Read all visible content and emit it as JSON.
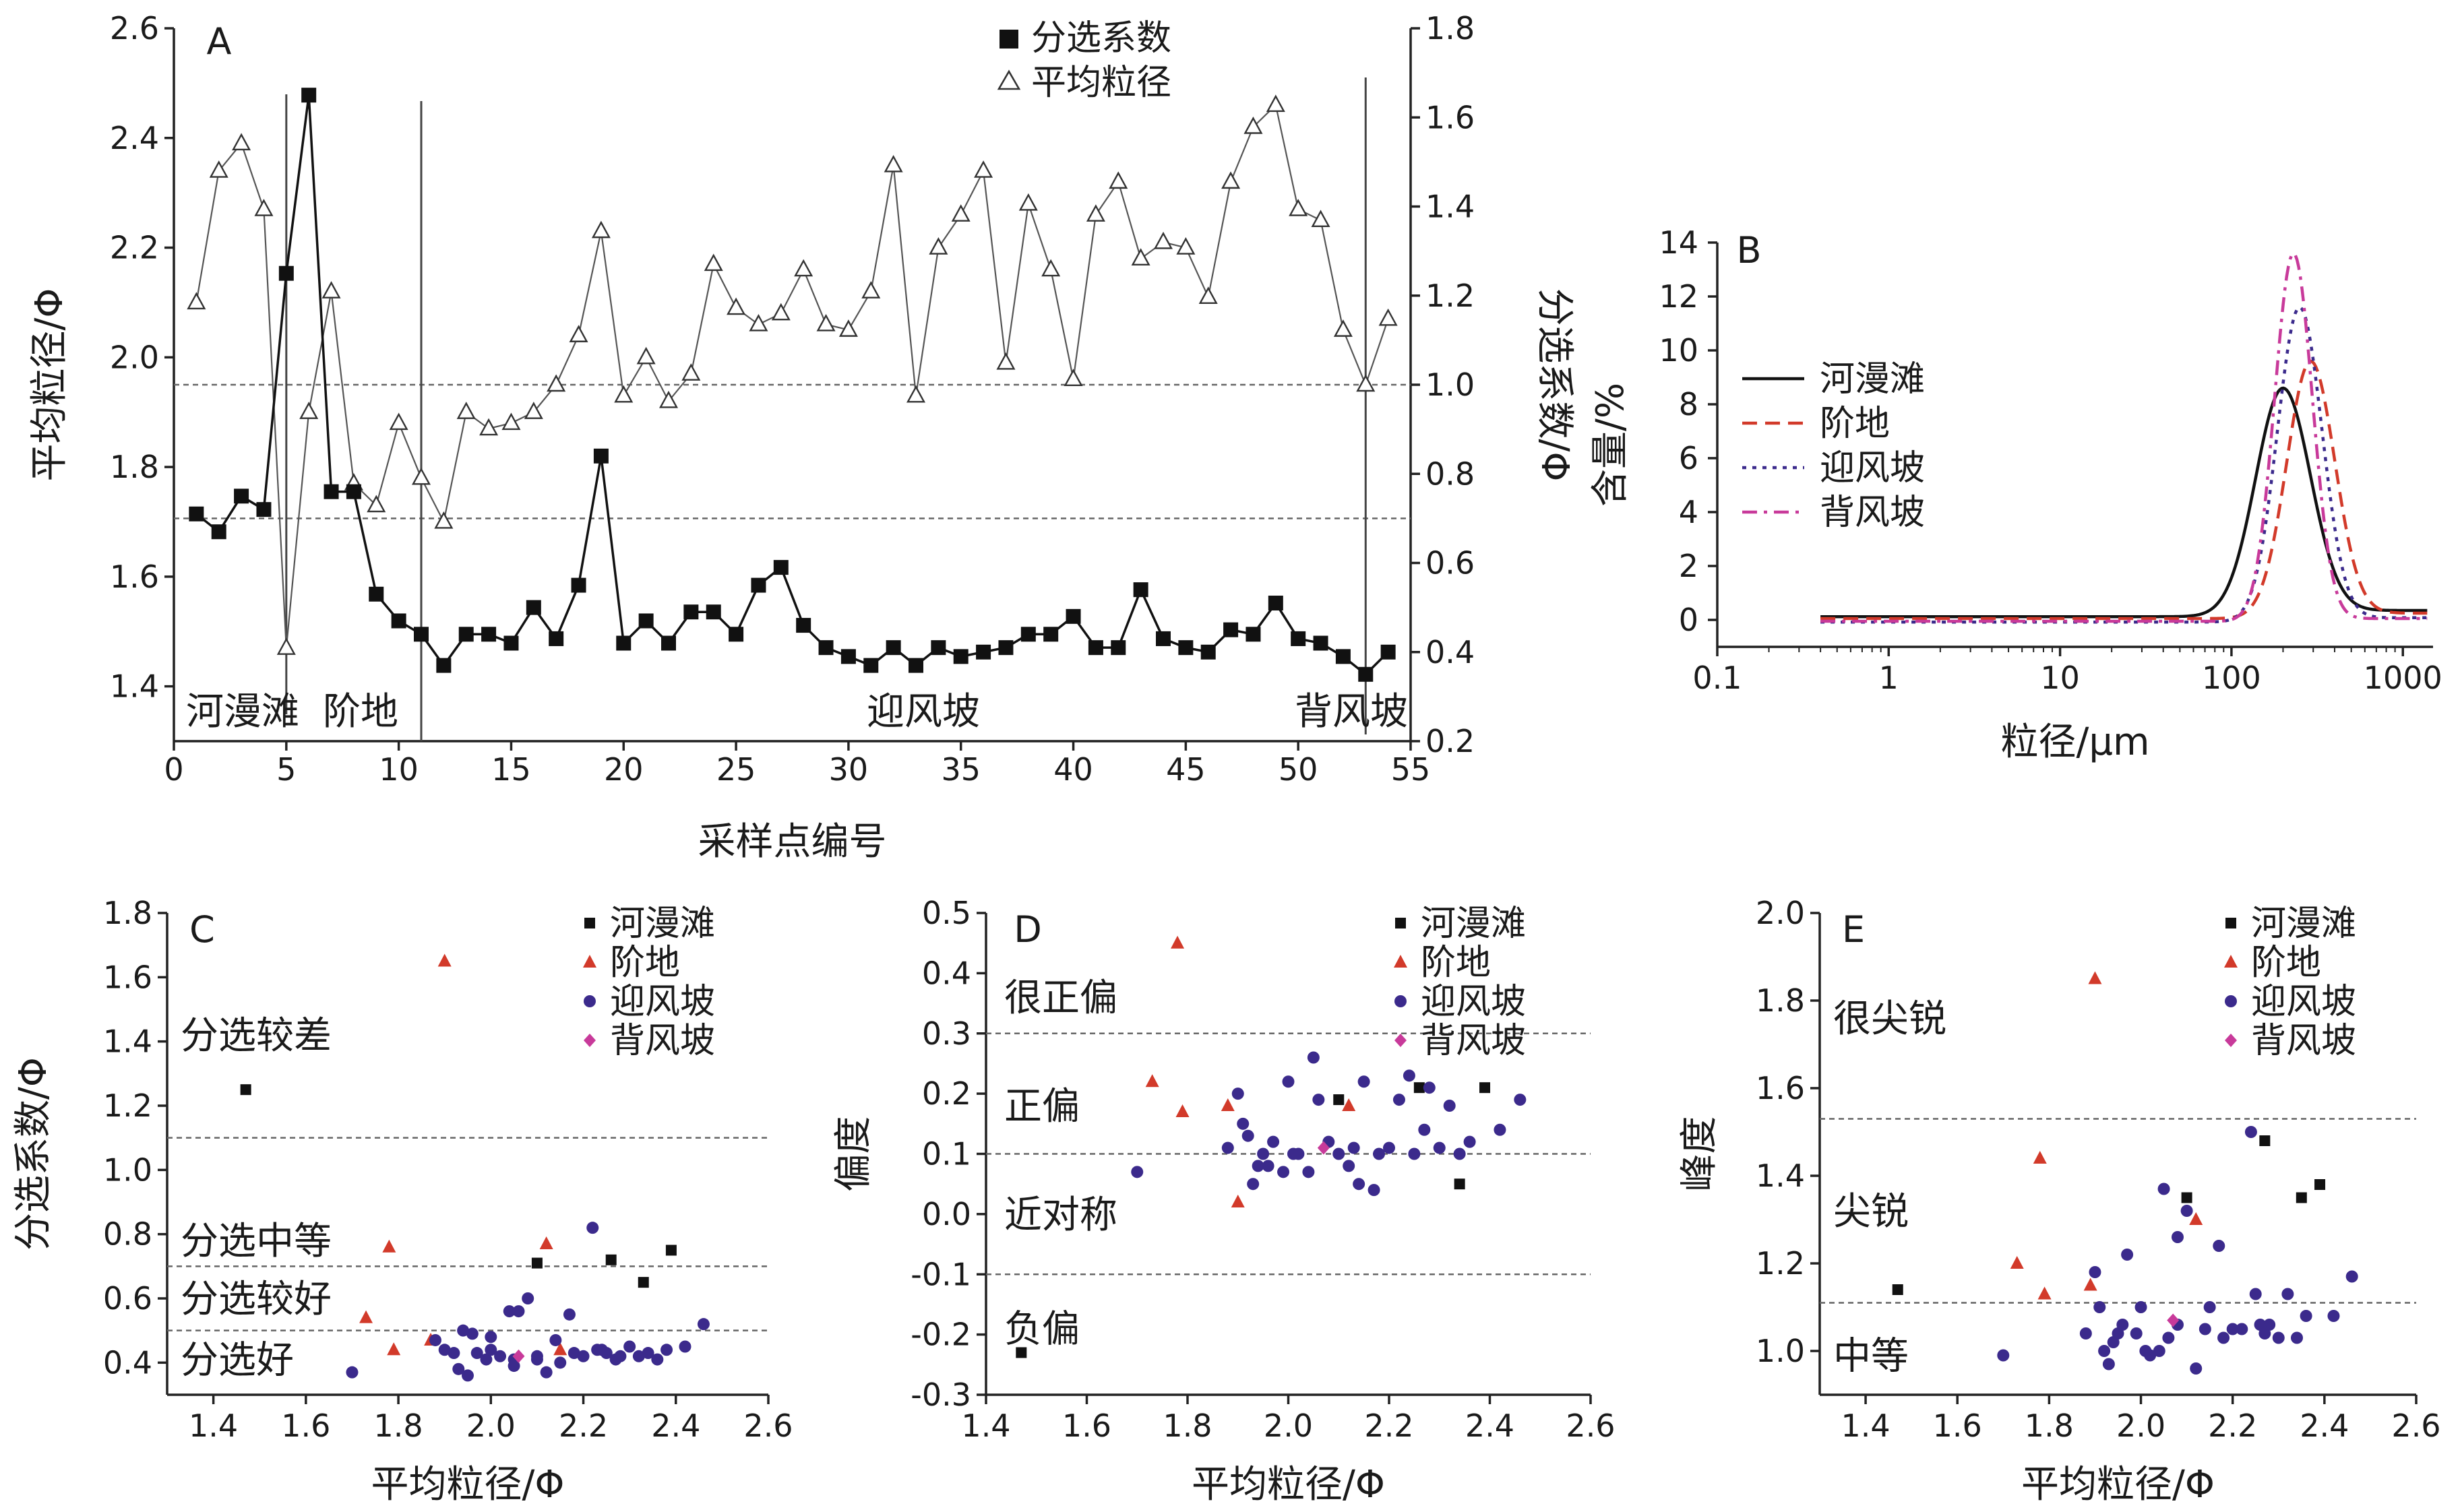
{
  "colors": {
    "hemantan": "#111111",
    "jiedi": "#d23a2a",
    "yingfengpo": "#3b2a8c",
    "beifengpo": "#c83a9a"
  },
  "chart_data": [
    {
      "panel": "A",
      "type": "line",
      "xlabel": "采样点编号",
      "ylabel_left": "平均粒径/Φ",
      "ylabel_right": "分选系数/Φ",
      "xlim": [
        0,
        55
      ],
      "xticks": [
        0,
        5,
        10,
        15,
        20,
        25,
        30,
        35,
        40,
        45,
        50,
        55
      ],
      "ylim_left": [
        1.3,
        2.6
      ],
      "yticks_left": [
        1.4,
        1.6,
        1.8,
        2.0,
        2.2,
        2.4,
        2.6
      ],
      "ylim_right": [
        0.2,
        1.8
      ],
      "yticks_right": [
        0.2,
        0.4,
        0.6,
        0.8,
        1.0,
        1.2,
        1.4,
        1.6,
        1.8
      ],
      "legend": [
        "分选系数",
        "平均粒径"
      ],
      "region_labels": [
        "河漫滩",
        "阶地",
        "迎风坡",
        "背风坡"
      ],
      "boundaries": [
        5,
        11,
        53
      ],
      "reference_lines": {
        "mean_size": 1.95,
        "sorting": 0.7
      },
      "series": [
        {
          "name": "平均粒径",
          "axis": "left",
          "x": [
            1,
            2,
            3,
            4,
            5,
            6,
            7,
            8,
            9,
            10,
            11,
            12,
            13,
            14,
            15,
            16,
            17,
            18,
            19,
            20,
            21,
            22,
            23,
            24,
            25,
            26,
            27,
            28,
            29,
            30,
            31,
            32,
            33,
            34,
            35,
            36,
            37,
            38,
            39,
            40,
            41,
            42,
            43,
            44,
            45,
            46,
            47,
            48,
            49,
            50,
            51,
            52,
            53,
            54
          ],
          "y": [
            2.1,
            2.34,
            2.39,
            2.27,
            1.47,
            1.9,
            2.12,
            1.77,
            1.73,
            1.88,
            1.78,
            1.7,
            1.9,
            1.87,
            1.88,
            1.9,
            1.95,
            2.04,
            2.23,
            1.93,
            2.0,
            1.92,
            1.97,
            2.17,
            2.09,
            2.06,
            2.08,
            2.16,
            2.06,
            2.05,
            2.12,
            2.35,
            1.93,
            2.2,
            2.26,
            2.34,
            1.99,
            2.28,
            2.16,
            1.96,
            2.26,
            2.32,
            2.18,
            2.21,
            2.2,
            2.11,
            2.32,
            2.42,
            2.46,
            2.27,
            2.25,
            2.05,
            1.95,
            2.07
          ]
        },
        {
          "name": "分选系数",
          "axis": "right",
          "x": [
            1,
            2,
            3,
            4,
            5,
            6,
            7,
            8,
            9,
            10,
            11,
            12,
            13,
            14,
            15,
            16,
            17,
            18,
            19,
            20,
            21,
            22,
            23,
            24,
            25,
            26,
            27,
            28,
            29,
            30,
            31,
            32,
            33,
            34,
            35,
            36,
            37,
            38,
            39,
            40,
            41,
            42,
            43,
            44,
            45,
            46,
            47,
            48,
            49,
            50,
            51,
            52,
            53,
            54
          ],
          "y": [
            0.71,
            0.67,
            0.75,
            0.72,
            1.25,
            1.65,
            0.76,
            0.76,
            0.53,
            0.47,
            0.44,
            0.37,
            0.44,
            0.44,
            0.42,
            0.5,
            0.43,
            0.55,
            0.84,
            0.42,
            0.47,
            0.42,
            0.49,
            0.49,
            0.44,
            0.55,
            0.59,
            0.46,
            0.41,
            0.39,
            0.37,
            0.41,
            0.37,
            0.41,
            0.39,
            0.4,
            0.41,
            0.44,
            0.44,
            0.48,
            0.41,
            0.41,
            0.54,
            0.43,
            0.41,
            0.4,
            0.45,
            0.44,
            0.51,
            0.43,
            0.42,
            0.39,
            0.35,
            0.4
          ]
        }
      ]
    },
    {
      "panel": "B",
      "type": "line",
      "xlabel": "粒径/μm",
      "ylabel": "含量/%",
      "xscale": "log",
      "xlim": [
        0.1,
        1500
      ],
      "xticks": [
        0.1,
        1,
        10,
        100,
        1000
      ],
      "xtick_labels": [
        "0.1",
        "1",
        "10",
        "100",
        "1000"
      ],
      "ylim": [
        -1,
        14
      ],
      "yticks": [
        0,
        2,
        4,
        6,
        8,
        10,
        12,
        14
      ],
      "series": [
        {
          "name": "河漫滩",
          "style": "solid",
          "color": "#111111",
          "peak_x": 200,
          "peak_y": 8.6,
          "width": 0.16,
          "base": 0.12,
          "tail_right": 0.35
        },
        {
          "name": "阶地",
          "style": "dashed",
          "color": "#d23a2a",
          "peak_x": 290,
          "peak_y": 9.6,
          "width": 0.14,
          "base": 0.05,
          "tail_right": 0.25
        },
        {
          "name": "迎风坡",
          "style": "dotted",
          "color": "#3b2a8c",
          "peak_x": 250,
          "peak_y": 11.6,
          "width": 0.13,
          "base": -0.08,
          "tail_right": 0.08
        },
        {
          "name": "背风坡",
          "style": "dashdot",
          "color": "#c83a9a",
          "peak_x": 230,
          "peak_y": 13.6,
          "width": 0.11,
          "base": -0.05,
          "tail_right": 0.05
        }
      ]
    },
    {
      "panel": "C",
      "type": "scatter",
      "xlabel": "平均粒径/Φ",
      "ylabel": "分选系数/Φ",
      "xlim": [
        1.3,
        2.6
      ],
      "xticks": [
        1.4,
        1.6,
        1.8,
        2.0,
        2.2,
        2.4,
        2.6
      ],
      "ylim": [
        0.3,
        1.8
      ],
      "yticks": [
        0.4,
        0.6,
        0.8,
        1.0,
        1.2,
        1.4,
        1.6,
        1.8
      ],
      "legend": [
        "河漫滩",
        "阶地",
        "迎风坡",
        "背风坡"
      ],
      "reference_lines": [
        1.1,
        0.7,
        0.5
      ],
      "zone_labels": [
        {
          "text": "分选较差",
          "y": 1.42
        },
        {
          "text": "分选中等",
          "y": 0.78
        },
        {
          "text": "分选较好",
          "y": 0.6
        },
        {
          "text": "分选好",
          "y": 0.41
        }
      ],
      "series": [
        {
          "name": "河漫滩",
          "marker": "square",
          "x": [
            1.47,
            2.1,
            2.26,
            2.33,
            2.39
          ],
          "y": [
            1.25,
            0.71,
            0.72,
            0.65,
            0.75
          ]
        },
        {
          "name": "阶地",
          "marker": "triangle",
          "x": [
            1.73,
            1.78,
            1.79,
            1.9,
            2.12,
            2.15,
            1.87
          ],
          "y": [
            0.54,
            0.76,
            0.44,
            1.65,
            0.77,
            0.44,
            0.47
          ]
        },
        {
          "name": "迎风坡",
          "marker": "circle",
          "x": [
            1.7,
            1.88,
            1.9,
            1.92,
            1.93,
            1.95,
            1.96,
            1.97,
            1.99,
            2.0,
            2.02,
            2.04,
            2.05,
            2.06,
            2.08,
            2.1,
            2.12,
            2.14,
            2.15,
            2.17,
            2.18,
            2.2,
            2.22,
            2.24,
            2.25,
            2.27,
            2.28,
            2.3,
            2.32,
            2.34,
            2.36,
            2.38,
            2.42,
            2.46,
            2.23,
            2.05,
            2.1,
            2.0,
            1.94
          ],
          "y": [
            0.37,
            0.47,
            0.44,
            0.43,
            0.38,
            0.36,
            0.49,
            0.43,
            0.41,
            0.48,
            0.42,
            0.56,
            0.41,
            0.56,
            0.6,
            0.42,
            0.37,
            0.47,
            0.4,
            0.55,
            0.43,
            0.42,
            0.82,
            0.44,
            0.43,
            0.41,
            0.42,
            0.45,
            0.42,
            0.43,
            0.41,
            0.44,
            0.45,
            0.52,
            0.44,
            0.39,
            0.41,
            0.44,
            0.5
          ]
        },
        {
          "name": "背风坡",
          "marker": "diamond",
          "x": [
            2.06
          ],
          "y": [
            0.42
          ]
        }
      ]
    },
    {
      "panel": "D",
      "type": "scatter",
      "xlabel": "平均粒径/Φ",
      "ylabel": "偏度",
      "xlim": [
        1.4,
        2.6
      ],
      "xticks": [
        1.4,
        1.6,
        1.8,
        2.0,
        2.2,
        2.4,
        2.6
      ],
      "ylim": [
        -0.3,
        0.5
      ],
      "yticks": [
        -0.3,
        -0.2,
        -0.1,
        0.0,
        0.1,
        0.2,
        0.3,
        0.4,
        0.5
      ],
      "legend": [
        "河漫滩",
        "阶地",
        "迎风坡",
        "背风坡"
      ],
      "reference_lines": [
        0.3,
        0.1,
        -0.1
      ],
      "zone_labels": [
        {
          "text": "很正偏",
          "y": 0.36
        },
        {
          "text": "正偏",
          "y": 0.18
        },
        {
          "text": "近对称",
          "y": 0.0
        },
        {
          "text": "负偏",
          "y": -0.19
        }
      ],
      "series": [
        {
          "name": "河漫滩",
          "marker": "square",
          "x": [
            1.47,
            2.1,
            2.26,
            2.34,
            2.39
          ],
          "y": [
            -0.23,
            0.19,
            0.21,
            0.05,
            0.21
          ]
        },
        {
          "name": "阶地",
          "marker": "triangle",
          "x": [
            1.73,
            1.78,
            1.79,
            1.88,
            1.9,
            2.12
          ],
          "y": [
            0.22,
            0.45,
            0.17,
            0.18,
            0.02,
            0.18
          ]
        },
        {
          "name": "迎风坡",
          "marker": "circle",
          "x": [
            1.7,
            1.88,
            1.9,
            1.91,
            1.92,
            1.93,
            1.95,
            1.96,
            1.97,
            1.99,
            2.0,
            2.02,
            2.04,
            2.05,
            2.06,
            2.08,
            2.1,
            2.12,
            2.14,
            2.15,
            2.17,
            2.18,
            2.2,
            2.22,
            2.24,
            2.25,
            2.27,
            2.28,
            2.3,
            2.32,
            2.34,
            2.36,
            2.42,
            2.46,
            2.13,
            2.01,
            1.94
          ],
          "y": [
            0.07,
            0.11,
            0.2,
            0.15,
            0.13,
            0.05,
            0.1,
            0.08,
            0.12,
            0.07,
            0.22,
            0.1,
            0.07,
            0.26,
            0.19,
            0.12,
            0.1,
            0.08,
            0.05,
            0.22,
            0.04,
            0.1,
            0.11,
            0.19,
            0.23,
            0.1,
            0.14,
            0.21,
            0.11,
            0.18,
            0.1,
            0.12,
            0.14,
            0.19,
            0.11,
            0.1,
            0.08
          ]
        },
        {
          "name": "背风坡",
          "marker": "diamond",
          "x": [
            2.07
          ],
          "y": [
            0.11
          ]
        }
      ]
    },
    {
      "panel": "E",
      "type": "scatter",
      "xlabel": "平均粒径/Φ",
      "ylabel": "峰度",
      "xlim": [
        1.3,
        2.6
      ],
      "xticks": [
        1.4,
        1.6,
        1.8,
        2.0,
        2.2,
        2.4,
        2.6
      ],
      "ylim": [
        0.9,
        2.0
      ],
      "yticks": [
        1.0,
        1.2,
        1.4,
        1.6,
        1.8,
        2.0
      ],
      "legend": [
        "河漫滩",
        "阶地",
        "迎风坡",
        "背风坡"
      ],
      "reference_lines": [
        1.53,
        1.11
      ],
      "zone_labels": [
        {
          "text": "很尖锐",
          "y": 1.76
        },
        {
          "text": "尖锐",
          "y": 1.32
        },
        {
          "text": "中等",
          "y": 0.99
        }
      ],
      "series": [
        {
          "name": "河漫滩",
          "marker": "square",
          "x": [
            1.47,
            2.1,
            2.27,
            2.35,
            2.39
          ],
          "y": [
            1.14,
            1.35,
            1.48,
            1.35,
            1.38
          ]
        },
        {
          "name": "阶地",
          "marker": "triangle",
          "x": [
            1.73,
            1.78,
            1.79,
            1.89,
            1.9,
            2.12
          ],
          "y": [
            1.2,
            1.44,
            1.13,
            1.15,
            1.85,
            1.3
          ]
        },
        {
          "name": "迎风坡",
          "marker": "circle",
          "x": [
            1.7,
            1.88,
            1.9,
            1.91,
            1.92,
            1.93,
            1.95,
            1.96,
            1.97,
            1.99,
            2.0,
            2.02,
            2.04,
            2.05,
            2.06,
            2.08,
            2.1,
            2.12,
            2.14,
            2.15,
            2.17,
            2.18,
            2.2,
            2.22,
            2.24,
            2.25,
            2.27,
            2.28,
            2.3,
            2.32,
            2.34,
            2.36,
            2.42,
            2.46,
            2.08,
            2.01,
            1.94,
            2.26
          ],
          "y": [
            0.99,
            1.04,
            1.18,
            1.1,
            1.0,
            0.97,
            1.04,
            1.06,
            1.22,
            1.04,
            1.1,
            0.99,
            1.0,
            1.37,
            1.03,
            1.26,
            1.32,
            0.96,
            1.05,
            1.1,
            1.24,
            1.03,
            1.05,
            1.05,
            1.5,
            1.13,
            1.04,
            1.06,
            1.03,
            1.13,
            1.03,
            1.08,
            1.08,
            1.17,
            1.06,
            1.0,
            1.02,
            1.06
          ]
        },
        {
          "name": "背风坡",
          "marker": "diamond",
          "x": [
            2.07
          ],
          "y": [
            1.07
          ]
        }
      ]
    }
  ]
}
